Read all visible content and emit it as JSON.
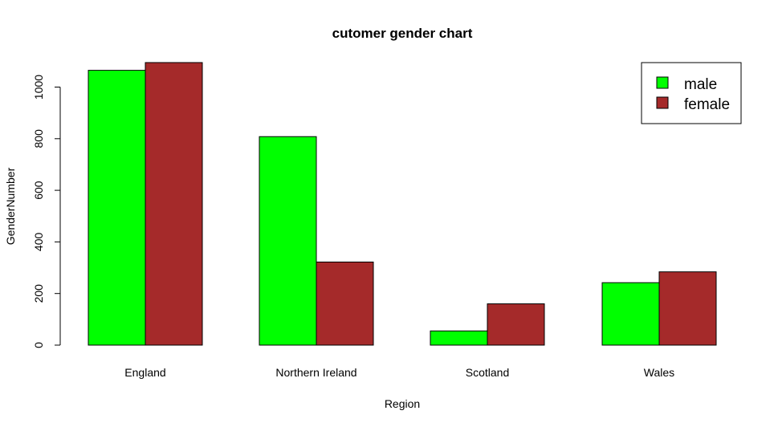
{
  "chart_data": {
    "type": "bar",
    "title": "cutomer gender chart",
    "xlabel": "Region",
    "ylabel": "GenderNumber",
    "categories": [
      "England",
      "Northern Ireland",
      "Scotland",
      "Wales"
    ],
    "series": [
      {
        "name": "male",
        "color": "#00ff00",
        "values": [
          1065,
          808,
          55,
          242
        ]
      },
      {
        "name": "female",
        "color": "#a52a2a",
        "values": [
          1095,
          322,
          160,
          284
        ]
      }
    ],
    "ylim": [
      0,
      1100
    ],
    "yticks": [
      0,
      200,
      400,
      600,
      800,
      1000
    ],
    "ytick_labels": [
      "0",
      "200",
      "400",
      "600",
      "800",
      "1000"
    ],
    "grid": false,
    "legend": "top-right"
  }
}
